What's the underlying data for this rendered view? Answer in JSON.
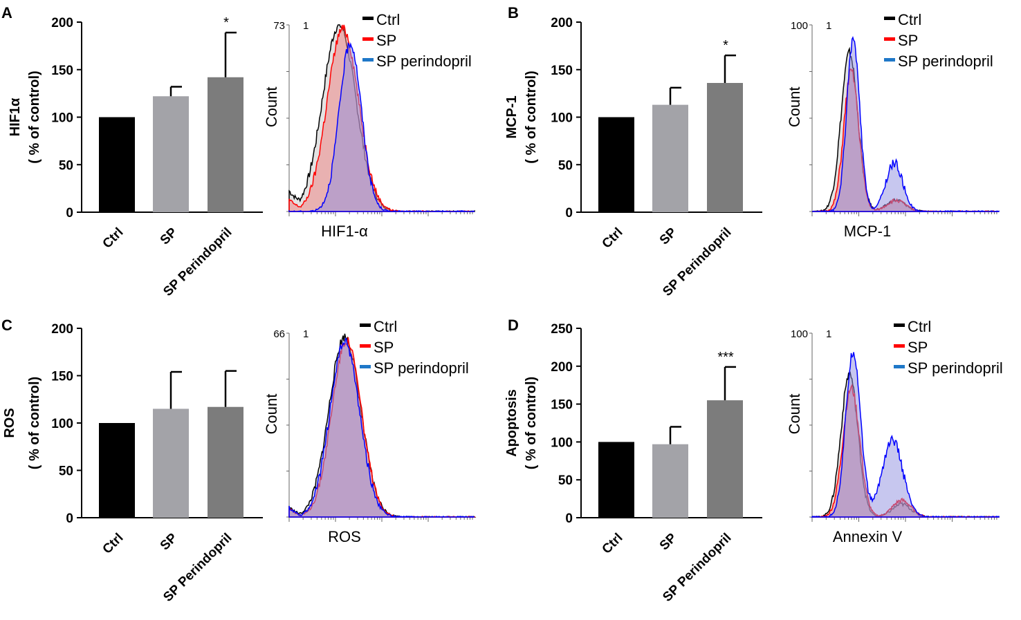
{
  "figure": {
    "tick_label_extra": "1"
  },
  "chart_data": [
    {
      "panel": "A",
      "type": "bar",
      "ylabel_lines": [
        "HIF1α",
        "( %  of control)"
      ],
      "categories": [
        "Ctrl",
        "SP",
        "SP Perindopril"
      ],
      "values": [
        100,
        122,
        142
      ],
      "errors": [
        0,
        10,
        47
      ],
      "significance": [
        "",
        "",
        "*"
      ],
      "ylim": [
        0,
        200
      ],
      "yticks": [
        0,
        50,
        100,
        150,
        200
      ],
      "bar_colors": [
        "#000000",
        "#a3a3a8",
        "#7c7c7c"
      ]
    },
    {
      "panel": "A",
      "type": "histogram",
      "xlabel": "HIF1-α",
      "ylabel": "Count",
      "ymax_label": "73",
      "legend": [
        {
          "name": "Ctrl",
          "color": "#000000"
        },
        {
          "name": "SP",
          "color": "#ff0000"
        },
        {
          "name": "SP perindopril",
          "color": "#1f78c8"
        }
      ],
      "series": [
        {
          "name": "Ctrl",
          "stroke": "#000000",
          "fill": "#c8c8c8",
          "mu": 0.27,
          "sigma": 0.09,
          "peak": 1.0,
          "lowtail": 0.1
        },
        {
          "name": "SP",
          "stroke": "#ff0000",
          "fill": "#f08080",
          "mu": 0.29,
          "sigma": 0.085,
          "peak": 0.98,
          "lowtail": 0.06
        },
        {
          "name": "SP perindopril",
          "stroke": "#0000ff",
          "fill": "#9090e0",
          "mu": 0.33,
          "sigma": 0.06,
          "peak": 0.9,
          "lowtail": 0.0
        }
      ]
    },
    {
      "panel": "B",
      "type": "bar",
      "ylabel_lines": [
        "MCP-1",
        "( %  of control)"
      ],
      "categories": [
        "Ctrl",
        "SP",
        "SP Perindopril"
      ],
      "values": [
        100,
        113,
        136
      ],
      "errors": [
        0,
        18,
        29
      ],
      "significance": [
        "",
        "",
        "*"
      ],
      "ylim": [
        0,
        200
      ],
      "yticks": [
        0,
        50,
        100,
        150,
        200
      ],
      "bar_colors": [
        "#000000",
        "#a3a3a8",
        "#7c7c7c"
      ]
    },
    {
      "panel": "B",
      "type": "histogram",
      "xlabel": "MCP-1",
      "ylabel": "Count",
      "ymax_label": "100",
      "legend": [
        {
          "name": "Ctrl",
          "color": "#000000"
        },
        {
          "name": "SP",
          "color": "#ff0000"
        },
        {
          "name": "SP perindopril",
          "color": "#1f78c8"
        }
      ],
      "series": [
        {
          "name": "Ctrl",
          "stroke": "#000000",
          "fill": "#c8c8c8",
          "mu": 0.2,
          "sigma": 0.045,
          "peak": 0.85,
          "mu2": 0.45,
          "sigma2": 0.05,
          "peak2": 0.06
        },
        {
          "name": "SP",
          "stroke": "#ff0000",
          "fill": "#f08080",
          "mu": 0.21,
          "sigma": 0.04,
          "peak": 0.75,
          "mu2": 0.45,
          "sigma2": 0.05,
          "peak2": 0.06
        },
        {
          "name": "SP perindopril",
          "stroke": "#0000ff",
          "fill": "#9090e0",
          "mu": 0.22,
          "sigma": 0.035,
          "peak": 0.92,
          "mu2": 0.44,
          "sigma2": 0.045,
          "peak2": 0.26
        }
      ]
    },
    {
      "panel": "C",
      "type": "bar",
      "ylabel_lines": [
        "ROS",
        "( %  of control)"
      ],
      "categories": [
        "Ctrl",
        "SP",
        "SP Perindopril"
      ],
      "values": [
        100,
        115,
        117
      ],
      "errors": [
        0,
        39,
        38
      ],
      "significance": [
        "",
        "",
        ""
      ],
      "ylim": [
        0,
        200
      ],
      "yticks": [
        0,
        50,
        100,
        150,
        200
      ],
      "bar_colors": [
        "#000000",
        "#a3a3a8",
        "#7c7c7c"
      ]
    },
    {
      "panel": "C",
      "type": "histogram",
      "xlabel": "ROS",
      "ylabel": "Count",
      "ymax_label": "66",
      "legend": [
        {
          "name": "Ctrl",
          "color": "#000000"
        },
        {
          "name": "SP",
          "color": "#ff0000"
        },
        {
          "name": "SP perindopril",
          "color": "#1f78c8"
        }
      ],
      "series": [
        {
          "name": "Ctrl",
          "stroke": "#000000",
          "fill": "#c8c8c8",
          "mu": 0.3,
          "sigma": 0.085,
          "peak": 0.98,
          "lowtail": 0.05
        },
        {
          "name": "SP",
          "stroke": "#ff0000",
          "fill": "#f08080",
          "mu": 0.31,
          "sigma": 0.08,
          "peak": 0.96,
          "lowtail": 0.05
        },
        {
          "name": "SP perindopril",
          "stroke": "#0000ff",
          "fill": "#9090e0",
          "mu": 0.3,
          "sigma": 0.08,
          "peak": 0.95,
          "lowtail": 0.05
        }
      ]
    },
    {
      "panel": "D",
      "type": "bar",
      "ylabel_lines": [
        "Apoptosis",
        "( %  of control)"
      ],
      "categories": [
        "Ctrl",
        "SP",
        "SP Perindopril"
      ],
      "values": [
        100,
        97,
        155
      ],
      "errors": [
        0,
        23,
        44
      ],
      "significance": [
        "",
        "",
        "***"
      ],
      "ylim": [
        0,
        250
      ],
      "yticks": [
        0,
        50,
        100,
        150,
        200,
        250
      ],
      "bar_colors": [
        "#000000",
        "#a3a3a8",
        "#7c7c7c"
      ]
    },
    {
      "panel": "D",
      "type": "histogram",
      "xlabel": "Annexin V",
      "ylabel": "Count",
      "ymax_label": "100",
      "legend": [
        {
          "name": "Ctrl",
          "color": "#000000"
        },
        {
          "name": "SP",
          "color": "#ff0000"
        },
        {
          "name": "SP perindopril",
          "color": "#1f78c8"
        }
      ],
      "series": [
        {
          "name": "Ctrl",
          "stroke": "#000000",
          "fill": "#c8c8c8",
          "mu": 0.2,
          "sigma": 0.045,
          "peak": 0.78,
          "mu2": 0.48,
          "sigma2": 0.05,
          "peak2": 0.07
        },
        {
          "name": "SP",
          "stroke": "#ff0000",
          "fill": "#f08080",
          "mu": 0.21,
          "sigma": 0.045,
          "peak": 0.7,
          "mu2": 0.48,
          "sigma2": 0.05,
          "peak2": 0.09
        },
        {
          "name": "SP perindopril",
          "stroke": "#0000ff",
          "fill": "#9090e0",
          "mu": 0.22,
          "sigma": 0.04,
          "peak": 0.9,
          "mu2": 0.43,
          "sigma2": 0.055,
          "peak2": 0.42
        }
      ]
    }
  ]
}
